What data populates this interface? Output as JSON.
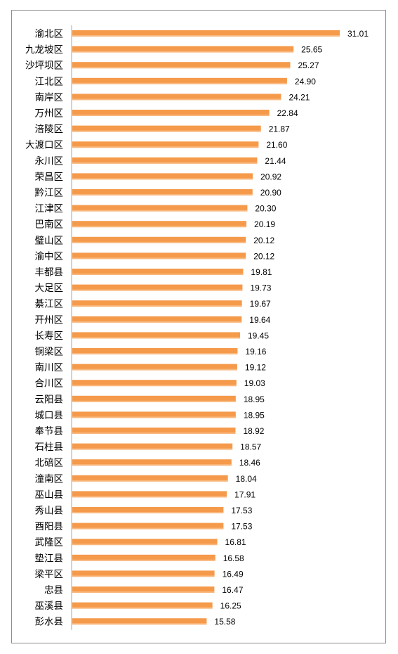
{
  "chart_data": {
    "type": "bar",
    "orientation": "horizontal",
    "categories": [
      "渝北区",
      "九龙坡区",
      "沙坪坝区",
      "江北区",
      "南岸区",
      "万州区",
      "涪陵区",
      "大渡口区",
      "永川区",
      "荣昌区",
      "黔江区",
      "江津区",
      "巴南区",
      "璧山区",
      "渝中区",
      "丰都县",
      "大足区",
      "綦江区",
      "开州区",
      "长寿区",
      "铜梁区",
      "南川区",
      "合川区",
      "云阳县",
      "城口县",
      "奉节县",
      "石柱县",
      "北碚区",
      "潼南区",
      "巫山县",
      "秀山县",
      "酉阳县",
      "武隆区",
      "垫江县",
      "梁平区",
      "忠县",
      "巫溪县",
      "彭水县"
    ],
    "values": [
      31.01,
      25.65,
      25.27,
      24.9,
      24.21,
      22.84,
      21.87,
      21.6,
      21.44,
      20.92,
      20.9,
      20.3,
      20.19,
      20.12,
      20.12,
      19.81,
      19.73,
      19.67,
      19.64,
      19.45,
      19.16,
      19.12,
      19.03,
      18.95,
      18.95,
      18.92,
      18.57,
      18.46,
      18.04,
      17.91,
      17.53,
      17.53,
      16.81,
      16.58,
      16.49,
      16.47,
      16.25,
      15.58
    ],
    "value_labels": [
      "31.01",
      "25.65",
      "25.27",
      "24.90",
      "24.21",
      "22.84",
      "21.87",
      "21.60",
      "21.44",
      "20.92",
      "20.90",
      "20.30",
      "20.19",
      "20.12",
      "20.12",
      "19.81",
      "19.73",
      "19.67",
      "19.64",
      "19.45",
      "19.16",
      "19.12",
      "19.03",
      "18.95",
      "18.95",
      "18.92",
      "18.57",
      "18.46",
      "18.04",
      "17.91",
      "17.53",
      "17.53",
      "16.81",
      "16.58",
      "16.49",
      "16.47",
      "16.25",
      "15.58"
    ],
    "title": "",
    "xlabel": "",
    "ylabel": "",
    "xlim": [
      0,
      32.3
    ],
    "grid": false,
    "legend": "none",
    "data_labels": "outside-end",
    "colors": {
      "bar": "#F59A4B",
      "bar_highlight": "#FBD0A8",
      "axis": "#A6A6A6",
      "border": "#8C8C8C",
      "text": "#000000"
    }
  }
}
